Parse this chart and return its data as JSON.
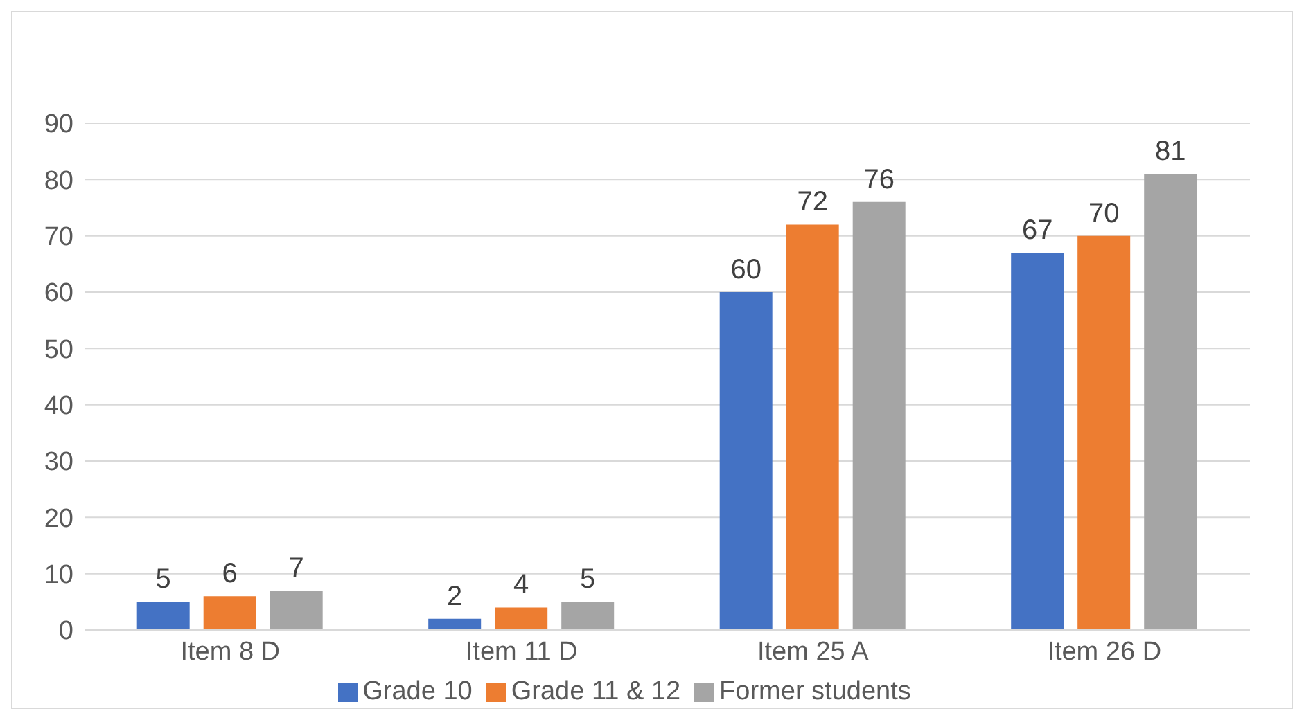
{
  "chart_data": {
    "type": "bar",
    "categories": [
      "Item 8 D",
      "Item 11 D",
      "Item 25 A",
      "Item 26 D"
    ],
    "series": [
      {
        "name": "Grade 10",
        "color": "#4472c4",
        "values": [
          5,
          2,
          60,
          67
        ]
      },
      {
        "name": "Grade 11 & 12",
        "color": "#ed7d31",
        "values": [
          6,
          4,
          72,
          70
        ]
      },
      {
        "name": "Former students",
        "color": "#a5a5a5",
        "values": [
          7,
          5,
          76,
          81
        ]
      }
    ],
    "ylim": [
      0,
      90
    ],
    "yticks": [
      0,
      10,
      20,
      30,
      40,
      50,
      60,
      70,
      80,
      90
    ],
    "grid": "y",
    "legend": "bottom",
    "data_labels": true
  }
}
